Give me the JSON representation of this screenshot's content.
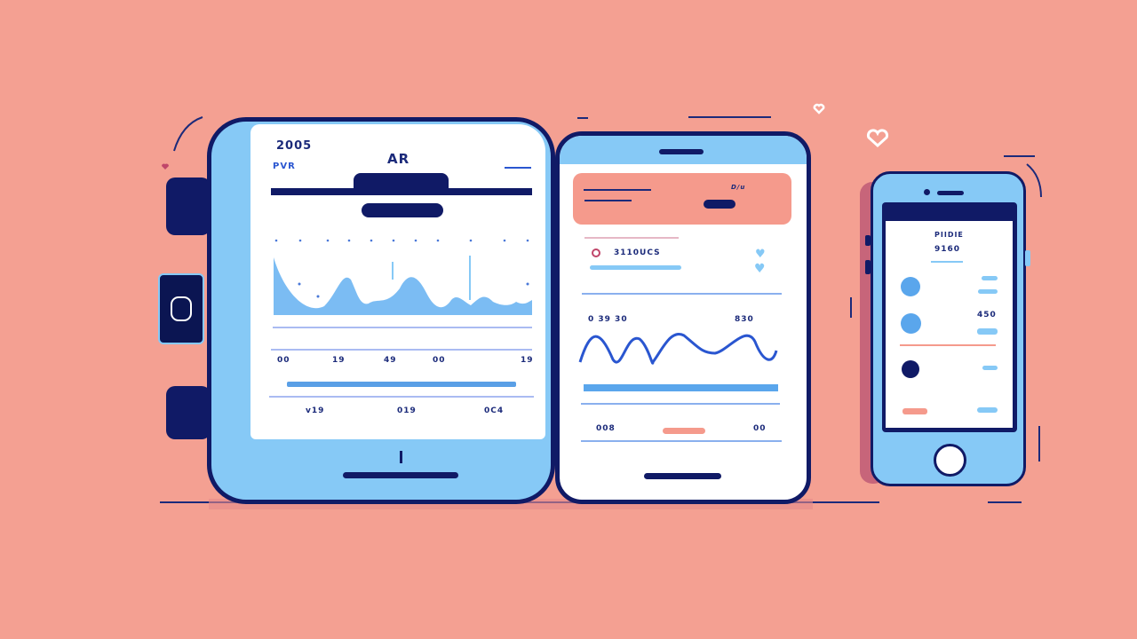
{
  "colors": {
    "background": "#f4a092",
    "navy": "#101a66",
    "light_blue": "#86c9f6",
    "accent_blue": "#2a56d0",
    "coral": "#f59a8c"
  },
  "tablet": {
    "year": "2005",
    "subtitle": "PVR",
    "title": "AR",
    "axis_labels": [
      "00",
      "19",
      "49",
      "00",
      "19"
    ],
    "footer_labels": [
      "v19",
      "019",
      "0C4"
    ]
  },
  "phone": {
    "banner_label": "D/u",
    "list_label": "3110UCS",
    "chart_left": "0 39 30",
    "chart_right": "830",
    "footer_left": "008",
    "footer_right": "00"
  },
  "small_phone": {
    "title": "PIIDIE",
    "value": "9160",
    "row_value": "450"
  },
  "icons": [
    "heart-icon",
    "heart-icon",
    "sync-icon"
  ]
}
